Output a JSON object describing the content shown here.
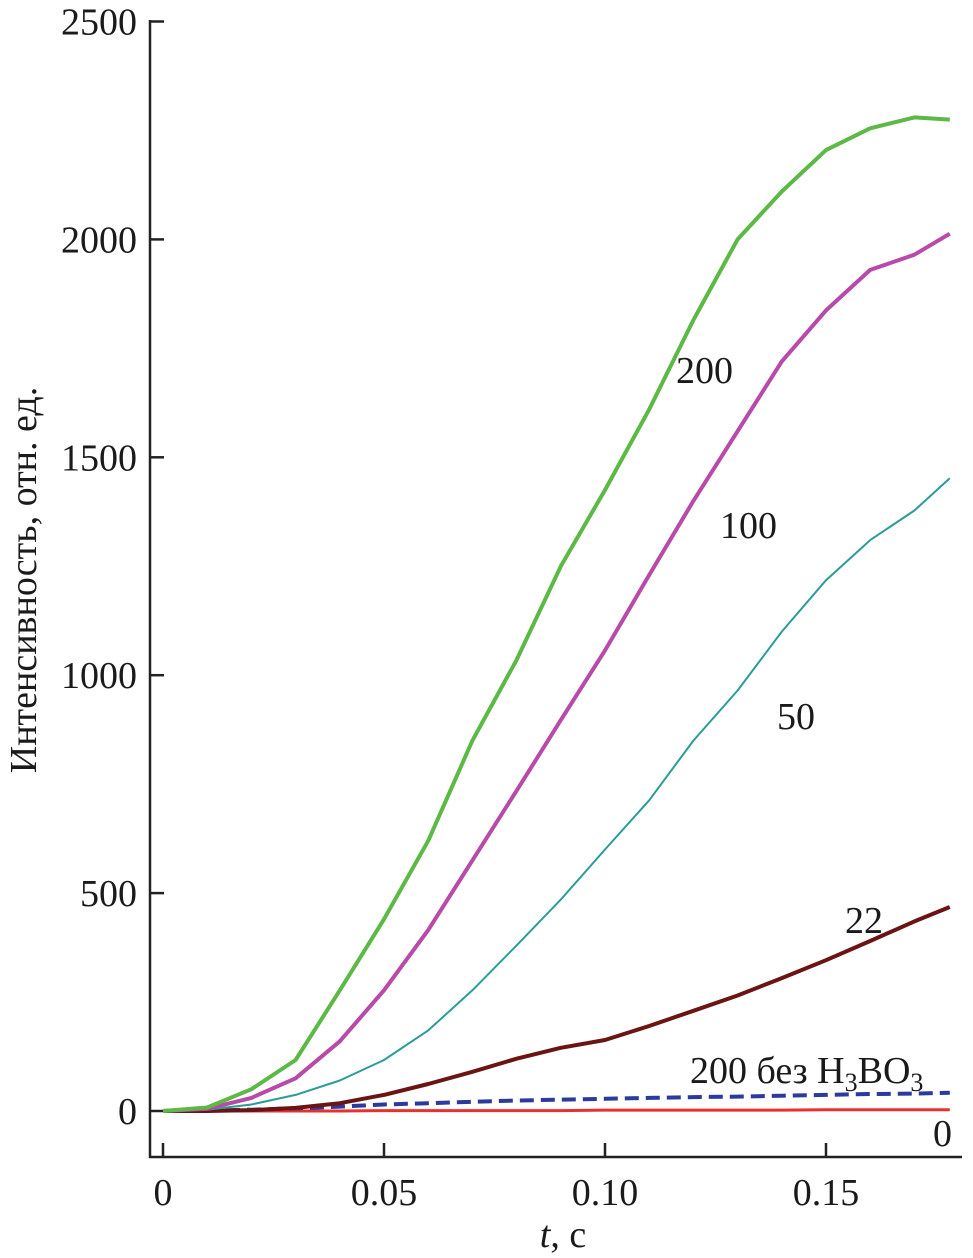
{
  "chart_data": {
    "type": "line",
    "title": "",
    "xlabel": "t, с",
    "xlabel_italic_part": "t",
    "xlabel_rest": ", с",
    "ylabel": "Интенсивность, отн. ед.",
    "xlim": [
      -0.003,
      0.18
    ],
    "ylim": [
      -105,
      2500
    ],
    "xticks": [
      0,
      0.05,
      0.1,
      0.15
    ],
    "xtick_labels": [
      "0",
      "0.05",
      "0.10",
      "0.15"
    ],
    "yticks": [
      0,
      500,
      1000,
      1500,
      2000,
      2500
    ],
    "ytick_labels": [
      "0",
      "500",
      "1000",
      "1500",
      "2000",
      "2500"
    ],
    "grid": false,
    "legend": "inline labels",
    "x": [
      0,
      0.01,
      0.02,
      0.03,
      0.04,
      0.05,
      0.06,
      0.07,
      0.08,
      0.09,
      0.1,
      0.11,
      0.12,
      0.13,
      0.14,
      0.15,
      0.16,
      0.17,
      0.178
    ],
    "series": [
      {
        "name": "200",
        "color": "#5cb946",
        "style": "solid",
        "width": 4,
        "values": [
          0,
          8,
          50,
          117,
          277,
          440,
          620,
          850,
          1035,
          1250,
          1425,
          1610,
          1815,
          2000,
          2110,
          2205,
          2255,
          2280,
          2275
        ]
      },
      {
        "name": "100",
        "color": "#b84aa9",
        "style": "solid",
        "width": 4,
        "values": [
          0,
          5,
          30,
          75,
          160,
          277,
          415,
          575,
          735,
          897,
          1057,
          1230,
          1400,
          1560,
          1720,
          1837,
          1930,
          1965,
          2013
        ]
      },
      {
        "name": "50",
        "color": "#2a9d96",
        "style": "solid",
        "width": 2,
        "values": [
          0,
          3,
          15,
          37,
          70,
          117,
          185,
          277,
          380,
          485,
          600,
          713,
          850,
          965,
          1100,
          1218,
          1310,
          1378,
          1452
        ]
      },
      {
        "name": "22",
        "color": "#6b1414",
        "style": "solid",
        "width": 4,
        "values": [
          0,
          0,
          2,
          7,
          18,
          37,
          62,
          90,
          120,
          145,
          163,
          195,
          230,
          265,
          305,
          346,
          390,
          435,
          468
        ]
      },
      {
        "name": "200 без H3BO3",
        "label_main": "200 без H",
        "label_sub1": "3",
        "label_mid": "BO",
        "label_sub2": "3",
        "color": "#2b3a9c",
        "style": "dashed",
        "width": 4,
        "values": [
          0,
          1,
          3,
          6,
          10,
          15,
          18,
          21,
          24,
          26,
          28,
          30,
          32,
          33,
          35,
          37,
          39,
          40,
          42
        ]
      },
      {
        "name": "0",
        "color": "#e8312f",
        "style": "solid",
        "width": 3,
        "values": [
          0,
          0,
          0,
          0,
          0,
          1,
          1,
          1,
          1,
          1,
          2,
          2,
          2,
          2,
          2,
          3,
          3,
          3,
          3
        ]
      }
    ]
  }
}
